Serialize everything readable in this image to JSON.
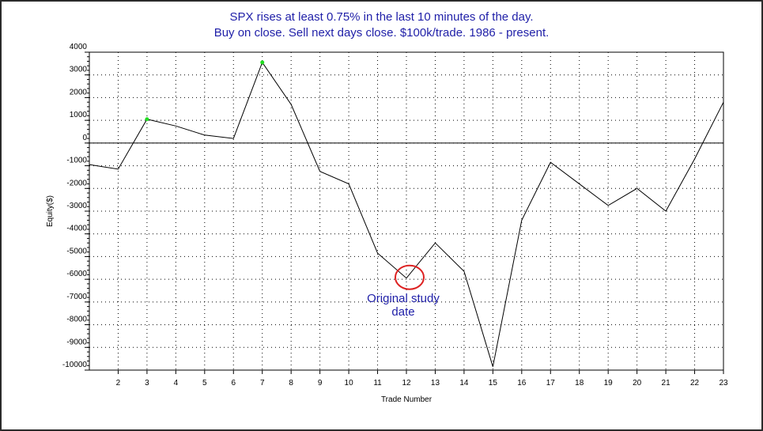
{
  "chart_data": {
    "type": "line",
    "title_lines": [
      "SPX rises at least 0.75% in the last 10 minutes of the day.",
      "Buy on close. Sell next days close. $100k/trade. 1986 - present."
    ],
    "xlabel": "Trade Number",
    "ylabel": "Equity($)",
    "xlim": [
      1,
      23
    ],
    "ylim": [
      -10000,
      4000
    ],
    "x_ticks": [
      2,
      3,
      4,
      5,
      6,
      7,
      8,
      9,
      10,
      11,
      12,
      13,
      14,
      15,
      16,
      17,
      18,
      19,
      20,
      21,
      22,
      23
    ],
    "y_ticks": [
      4000,
      3000,
      2000,
      1000,
      0,
      -1000,
      -2000,
      -3000,
      -4000,
      -5000,
      -6000,
      -7000,
      -8000,
      -9000,
      -10000
    ],
    "grid": true,
    "series": [
      {
        "color": "#000000",
        "x": [
          1,
          2,
          3,
          4,
          5,
          6,
          7,
          8,
          9,
          10,
          11,
          12,
          13,
          14,
          15,
          16,
          17,
          18,
          19,
          20,
          21,
          22,
          23
        ],
        "y": [
          -950,
          -1150,
          1050,
          750,
          350,
          200,
          3550,
          1700,
          -1250,
          -1800,
          -4850,
          -5950,
          -4400,
          -5650,
          -9850,
          -3400,
          -850,
          -1800,
          -2750,
          -2000,
          -3000,
          -700,
          1800
        ]
      }
    ],
    "highlight_points": {
      "color": "#22dd22",
      "x": [
        3,
        7
      ],
      "y": [
        1050,
        3550
      ]
    },
    "annotation": {
      "lines": [
        "Original study",
        "date"
      ],
      "target_x": 12,
      "target_y": -5950,
      "circle_color": "#dd2222",
      "text_color": "#1f1fa8"
    }
  }
}
